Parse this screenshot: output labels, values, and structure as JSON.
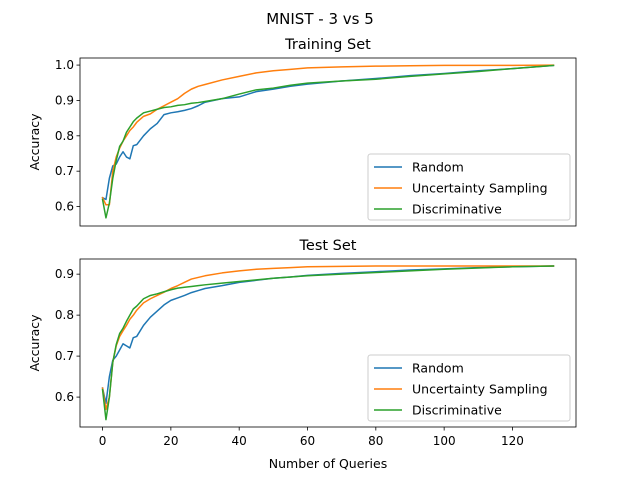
{
  "suptitle": "MNIST - 3 vs 5",
  "xlabel": "Number of Queries",
  "colors": {
    "Random": "#1f77b4",
    "Uncertainty Sampling": "#ff7f0e",
    "Discriminative": "#2ca02c"
  },
  "chart_data": [
    {
      "type": "line",
      "title": "Training Set",
      "xlabel": "",
      "ylabel": "Accuracy",
      "xlim": [
        -6.6,
        138.6
      ],
      "ylim": [
        0.545,
        1.02
      ],
      "xticks": [],
      "yticks": [
        0.6,
        0.7,
        0.8,
        0.9,
        1.0
      ],
      "ytick_labels": [
        "0.6",
        "0.7",
        "0.8",
        "0.9",
        "1.0"
      ],
      "legend_position": "lower right",
      "series": [
        {
          "name": "Random",
          "x": [
            0,
            1,
            2,
            3,
            4,
            5,
            6,
            7,
            8,
            9,
            10,
            12,
            14,
            16,
            18,
            20,
            22,
            24,
            26,
            28,
            30,
            35,
            40,
            45,
            50,
            55,
            60,
            70,
            80,
            90,
            100,
            110,
            120,
            132
          ],
          "values": [
            0.625,
            0.62,
            0.68,
            0.715,
            0.72,
            0.74,
            0.755,
            0.74,
            0.735,
            0.772,
            0.775,
            0.8,
            0.82,
            0.835,
            0.86,
            0.865,
            0.868,
            0.872,
            0.877,
            0.885,
            0.895,
            0.905,
            0.91,
            0.925,
            0.932,
            0.94,
            0.946,
            0.955,
            0.962,
            0.97,
            0.976,
            0.984,
            0.99,
            0.999
          ]
        },
        {
          "name": "Uncertainty Sampling",
          "x": [
            0,
            1,
            2,
            3,
            4,
            5,
            6,
            7,
            8,
            9,
            10,
            12,
            14,
            16,
            18,
            20,
            22,
            24,
            26,
            28,
            30,
            35,
            40,
            45,
            50,
            55,
            60,
            70,
            80,
            90,
            100,
            110,
            120,
            132
          ],
          "values": [
            0.625,
            0.605,
            0.605,
            0.7,
            0.74,
            0.765,
            0.785,
            0.8,
            0.815,
            0.825,
            0.838,
            0.855,
            0.862,
            0.875,
            0.885,
            0.895,
            0.905,
            0.92,
            0.932,
            0.94,
            0.945,
            0.958,
            0.968,
            0.978,
            0.984,
            0.988,
            0.992,
            0.995,
            0.997,
            0.998,
            0.999,
            0.999,
            0.999,
            1.0
          ]
        },
        {
          "name": "Discriminative",
          "x": [
            0,
            1,
            2,
            3,
            4,
            5,
            6,
            7,
            8,
            9,
            10,
            12,
            14,
            16,
            18,
            20,
            22,
            24,
            26,
            28,
            30,
            35,
            40,
            45,
            50,
            55,
            60,
            70,
            80,
            90,
            100,
            110,
            120,
            132
          ],
          "values": [
            0.62,
            0.568,
            0.61,
            0.68,
            0.73,
            0.77,
            0.785,
            0.81,
            0.825,
            0.84,
            0.85,
            0.865,
            0.87,
            0.875,
            0.88,
            0.882,
            0.886,
            0.888,
            0.892,
            0.894,
            0.897,
            0.905,
            0.918,
            0.93,
            0.935,
            0.943,
            0.949,
            0.955,
            0.96,
            0.968,
            0.975,
            0.982,
            0.99,
            0.999
          ]
        }
      ]
    },
    {
      "type": "line",
      "title": "Test Set",
      "xlabel": "Number of Queries",
      "ylabel": "Accuracy",
      "xlim": [
        -6.6,
        138.6
      ],
      "ylim": [
        0.527,
        0.937
      ],
      "xticks": [
        0,
        20,
        40,
        60,
        80,
        100,
        120
      ],
      "xtick_labels": [
        "0",
        "20",
        "40",
        "60",
        "80",
        "100",
        "120"
      ],
      "yticks": [
        0.6,
        0.7,
        0.8,
        0.9
      ],
      "ytick_labels": [
        "0.6",
        "0.7",
        "0.8",
        "0.9"
      ],
      "legend_position": "lower right",
      "series": [
        {
          "name": "Random",
          "x": [
            0,
            1,
            2,
            3,
            4,
            5,
            6,
            7,
            8,
            9,
            10,
            12,
            14,
            16,
            18,
            20,
            22,
            24,
            26,
            28,
            30,
            35,
            40,
            45,
            50,
            55,
            60,
            70,
            80,
            90,
            100,
            110,
            120,
            132
          ],
          "values": [
            0.622,
            0.585,
            0.65,
            0.69,
            0.7,
            0.715,
            0.73,
            0.725,
            0.72,
            0.745,
            0.748,
            0.775,
            0.795,
            0.81,
            0.825,
            0.836,
            0.842,
            0.848,
            0.855,
            0.86,
            0.865,
            0.872,
            0.88,
            0.885,
            0.89,
            0.893,
            0.897,
            0.902,
            0.906,
            0.91,
            0.913,
            0.916,
            0.918,
            0.92
          ]
        },
        {
          "name": "Uncertainty Sampling",
          "x": [
            0,
            1,
            2,
            3,
            4,
            5,
            6,
            7,
            8,
            9,
            10,
            12,
            14,
            16,
            18,
            20,
            22,
            24,
            26,
            28,
            30,
            35,
            40,
            45,
            50,
            55,
            60,
            70,
            80,
            90,
            100,
            110,
            120,
            132
          ],
          "values": [
            0.622,
            0.57,
            0.6,
            0.685,
            0.725,
            0.748,
            0.762,
            0.775,
            0.79,
            0.8,
            0.812,
            0.83,
            0.84,
            0.848,
            0.856,
            0.865,
            0.872,
            0.88,
            0.888,
            0.892,
            0.896,
            0.903,
            0.908,
            0.912,
            0.914,
            0.916,
            0.918,
            0.919,
            0.92,
            0.92,
            0.92,
            0.92,
            0.92,
            0.92
          ]
        },
        {
          "name": "Discriminative",
          "x": [
            0,
            1,
            2,
            3,
            4,
            5,
            6,
            7,
            8,
            9,
            10,
            12,
            14,
            16,
            18,
            20,
            22,
            24,
            26,
            28,
            30,
            35,
            40,
            45,
            50,
            55,
            60,
            70,
            80,
            90,
            100,
            110,
            120,
            132
          ],
          "values": [
            0.618,
            0.545,
            0.6,
            0.685,
            0.728,
            0.755,
            0.768,
            0.785,
            0.8,
            0.815,
            0.822,
            0.84,
            0.848,
            0.852,
            0.857,
            0.862,
            0.866,
            0.868,
            0.87,
            0.872,
            0.874,
            0.878,
            0.882,
            0.886,
            0.89,
            0.893,
            0.896,
            0.9,
            0.904,
            0.908,
            0.912,
            0.915,
            0.918,
            0.92
          ]
        }
      ]
    }
  ]
}
